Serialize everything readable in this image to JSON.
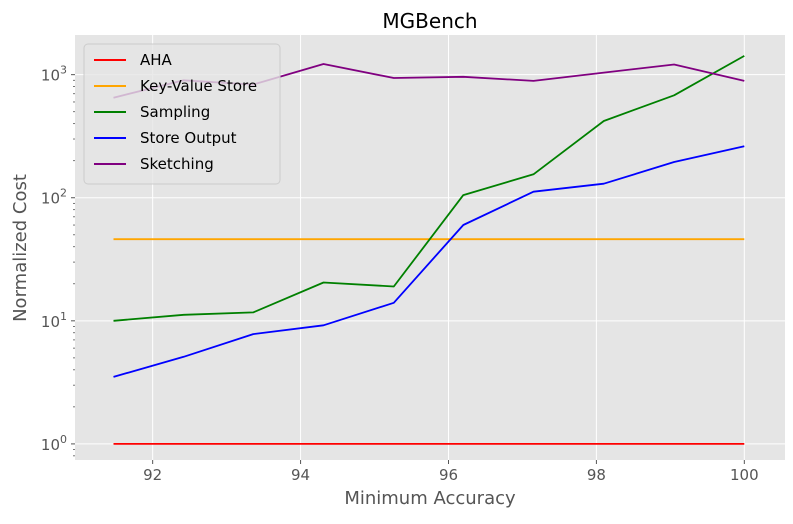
{
  "chart_data": {
    "type": "line",
    "title": "MGBench",
    "xlabel": "Minimum Accuracy",
    "ylabel": "Normalized Cost",
    "yscale": "log",
    "xlim": [
      90.95,
      100.55
    ],
    "ylim": [
      0.74,
      2100
    ],
    "grid": true,
    "legend_position": "top-left",
    "x_ticks": [
      {
        "value": 92,
        "label": "92"
      },
      {
        "value": 94,
        "label": "94"
      },
      {
        "value": 96,
        "label": "96"
      },
      {
        "value": 98,
        "label": "98"
      },
      {
        "value": 100,
        "label": "100"
      }
    ],
    "y_ticks": [
      {
        "value": 1,
        "base": "10",
        "exp": "0"
      },
      {
        "value": 10,
        "base": "10",
        "exp": "1"
      },
      {
        "value": 100,
        "base": "10",
        "exp": "2"
      },
      {
        "value": 1000,
        "base": "10",
        "exp": "3"
      }
    ],
    "x": [
      91.47,
      92.42,
      93.36,
      94.31,
      95.26,
      96.2,
      97.15,
      98.1,
      99.05,
      100.0
    ],
    "series": [
      {
        "name": "AHA",
        "color": "#ff0000",
        "values": [
          1,
          1,
          1,
          1,
          1,
          1,
          1,
          1,
          1,
          1
        ]
      },
      {
        "name": "Key-Value Store",
        "color": "#ffa500",
        "values": [
          46,
          46,
          46,
          46,
          46,
          46,
          46,
          46,
          46,
          46
        ]
      },
      {
        "name": "Sampling",
        "color": "#008000",
        "values": [
          10,
          11.2,
          11.7,
          20.5,
          19,
          105,
          155,
          420,
          680,
          1420
        ]
      },
      {
        "name": "Store Output",
        "color": "#0000ff",
        "values": [
          3.5,
          5.1,
          7.8,
          9.2,
          14,
          60,
          112,
          130,
          195,
          262
        ]
      },
      {
        "name": "Sketching",
        "color": "#800080",
        "values": [
          650,
          900,
          830,
          1220,
          940,
          960,
          890,
          1040,
          1210,
          890
        ]
      }
    ]
  }
}
